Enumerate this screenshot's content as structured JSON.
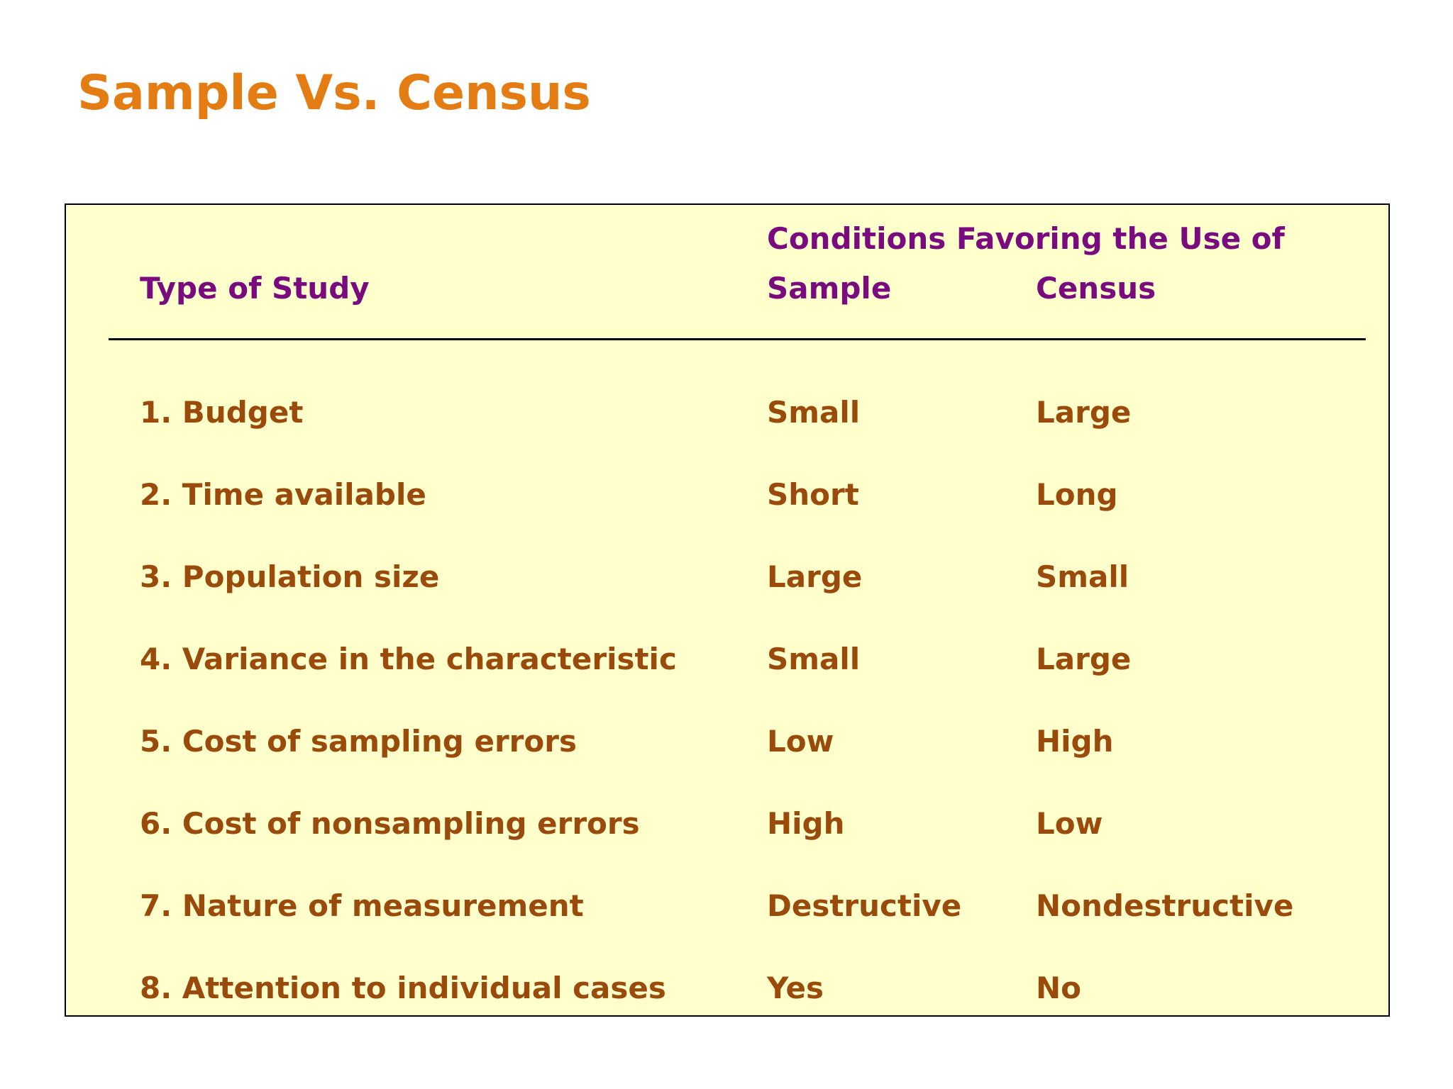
{
  "title": "Sample Vs. Census",
  "table": {
    "super_header": "Conditions Favoring the Use of",
    "header": [
      "Type of Study",
      "Sample",
      "Census"
    ],
    "rows": [
      [
        "1. Budget",
        "Small",
        "Large"
      ],
      [
        "2. Time available",
        "Short",
        "Long"
      ],
      [
        "3. Population size",
        "Large",
        "Small"
      ],
      [
        "4. Variance in the characteristic",
        "Small",
        "Large"
      ],
      [
        "5. Cost of sampling errors",
        "Low",
        "High"
      ],
      [
        "6. Cost of nonsampling errors",
        "High",
        "Low"
      ],
      [
        "7. Nature of measurement",
        "Destructive",
        "Nondestructive"
      ],
      [
        "8. Attention to individual cases",
        "Yes",
        "No"
      ]
    ]
  }
}
